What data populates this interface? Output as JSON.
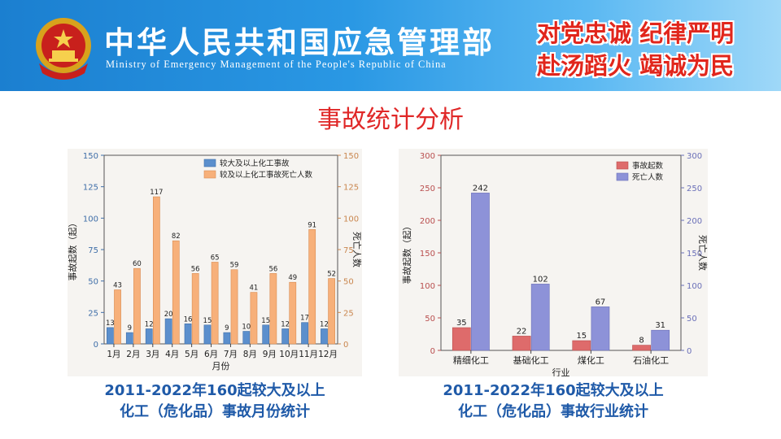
{
  "header": {
    "org_cn": "中华人民共和国应急管理部",
    "org_en": "Ministry of Emergency Management of the People's Republic of China",
    "slogan_line1": "对党忠诚 纪律严明",
    "slogan_line2": "赴汤蹈火 竭诚为民"
  },
  "section_title": "事故统计分析",
  "captions": {
    "left_line1": "2011-2022年160起较大及以上",
    "left_line2": "化工（危化品）事故月份统计",
    "right_line1": "2011-2022年160起较大及以上",
    "right_line2": "化工（危化品）事故行业统计"
  },
  "colors": {
    "banner": "#2a98e4",
    "title_red": "#e02828",
    "caption_blue": "#1f5aa8",
    "accidents_blue": "#5b8fcd",
    "deaths_orange": "#f7b07a",
    "accidents_red": "#de6b6b",
    "deaths_purple": "#8d92d8"
  },
  "chart_data": [
    {
      "type": "bar",
      "categories": [
        "1月",
        "2月",
        "3月",
        "4月",
        "5月",
        "6月",
        "7月",
        "8月",
        "9月",
        "10月",
        "11月",
        "12月"
      ],
      "series": [
        {
          "name": "较大及以上化工事故",
          "axis": "left",
          "values": [
            13,
            9,
            12,
            20,
            16,
            15,
            9,
            10,
            15,
            12,
            17,
            12
          ]
        },
        {
          "name": "较及以上化工事故死亡人数",
          "axis": "right",
          "values": [
            43,
            60,
            117,
            82,
            56,
            65,
            59,
            41,
            56,
            49,
            91,
            52
          ]
        }
      ],
      "xlabel": "月份",
      "ylabel": "事故起数（起）",
      "y2label": "死亡人数",
      "ylim": [
        0,
        150
      ],
      "y2lim": [
        0,
        150
      ],
      "yticks": [
        0,
        25,
        50,
        75,
        100,
        125,
        150
      ],
      "legend": "top-right",
      "grid": false
    },
    {
      "type": "bar",
      "categories": [
        "精细化工",
        "基础化工",
        "煤化工",
        "石油化工"
      ],
      "series": [
        {
          "name": "事故起数",
          "axis": "left",
          "values": [
            35,
            22,
            15,
            8
          ]
        },
        {
          "name": "死亡人数",
          "axis": "right",
          "values": [
            242,
            102,
            67,
            31
          ]
        }
      ],
      "xlabel": "行业",
      "ylabel": "事故起数（起）",
      "y2label": "死亡人数",
      "ylim": [
        0,
        300
      ],
      "y2lim": [
        0,
        300
      ],
      "yticks": [
        0,
        50,
        100,
        150,
        200,
        250,
        300
      ],
      "legend": "top-right",
      "grid": false
    }
  ]
}
